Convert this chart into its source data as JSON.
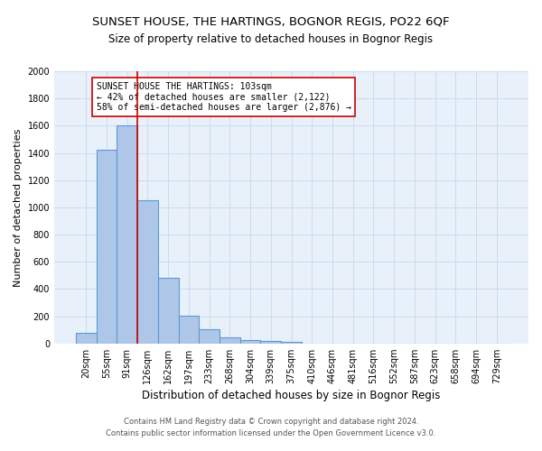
{
  "title": "SUNSET HOUSE, THE HARTINGS, BOGNOR REGIS, PO22 6QF",
  "subtitle": "Size of property relative to detached houses in Bognor Regis",
  "xlabel": "Distribution of detached houses by size in Bognor Regis",
  "ylabel": "Number of detached properties",
  "footnote1": "Contains HM Land Registry data © Crown copyright and database right 2024.",
  "footnote2": "Contains public sector information licensed under the Open Government Licence v3.0.",
  "bin_labels": [
    "20sqm",
    "55sqm",
    "91sqm",
    "126sqm",
    "162sqm",
    "197sqm",
    "233sqm",
    "268sqm",
    "304sqm",
    "339sqm",
    "375sqm",
    "410sqm",
    "446sqm",
    "481sqm",
    "516sqm",
    "552sqm",
    "587sqm",
    "623sqm",
    "658sqm",
    "694sqm",
    "729sqm"
  ],
  "bar_heights": [
    80,
    1420,
    1600,
    1050,
    480,
    205,
    105,
    45,
    25,
    15,
    10,
    0,
    0,
    0,
    0,
    0,
    0,
    0,
    0,
    0,
    0
  ],
  "bar_color": "#aec6e8",
  "bar_edgecolor": "#5b9bd5",
  "bar_linewidth": 0.8,
  "vline_x": 2.5,
  "vline_color": "#cc0000",
  "vline_linewidth": 1.2,
  "annotation_text": "SUNSET HOUSE THE HARTINGS: 103sqm\n← 42% of detached houses are smaller (2,122)\n58% of semi-detached houses are larger (2,876) →",
  "ylim": [
    0,
    2000
  ],
  "yticks": [
    0,
    200,
    400,
    600,
    800,
    1000,
    1200,
    1400,
    1600,
    1800,
    2000
  ],
  "grid_color": "#c8d8ee",
  "bg_color": "#e8f0fa",
  "title_fontsize": 9.5,
  "subtitle_fontsize": 8.5,
  "xlabel_fontsize": 8.5,
  "ylabel_fontsize": 8.0,
  "tick_fontsize": 7.0,
  "annotation_fontsize": 7.0,
  "footnote_fontsize": 6.0
}
